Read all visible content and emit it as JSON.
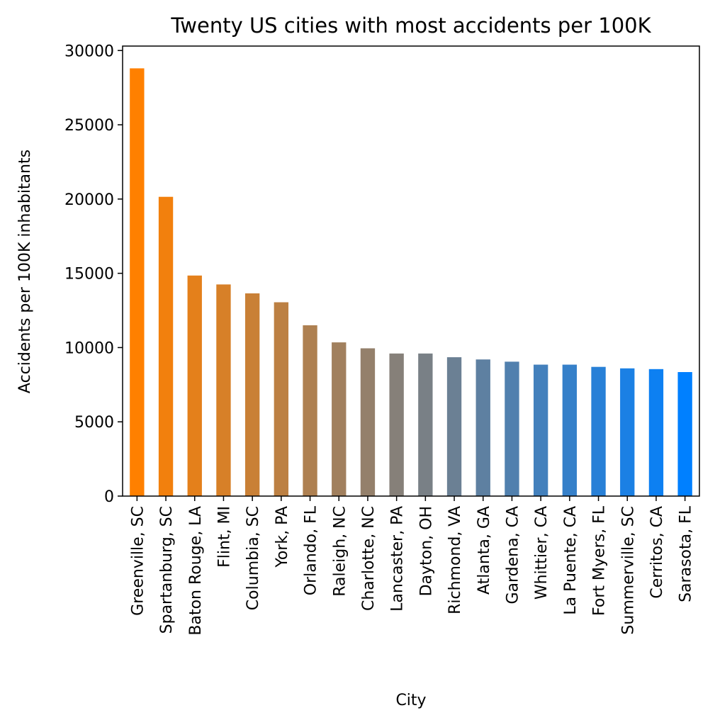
{
  "chart_data": {
    "type": "bar",
    "title": "Twenty US cities with most accidents per 100K",
    "xlabel": "City",
    "ylabel": "Accidents per 100K inhabitants",
    "ylim": [
      0,
      30300
    ],
    "yticks": [
      0,
      5000,
      10000,
      15000,
      20000,
      25000,
      30000
    ],
    "grid": false,
    "categories": [
      "Greenville, SC",
      "Spartanburg, SC",
      "Baton Rouge, LA",
      "Flint, MI",
      "Columbia, SC",
      "York, PA",
      "Orlando, FL",
      "Raleigh, NC",
      "Charlotte, NC",
      "Lancaster, PA",
      "Dayton, OH",
      "Richmond, VA",
      "Atlanta, GA",
      "Gardena, CA",
      "Whittier, CA",
      "La Puente, CA",
      "Fort Myers, FL",
      "Summerville, SC",
      "Cerritos, CA",
      "Sarasota, FL"
    ],
    "values": [
      28800,
      20150,
      14850,
      14250,
      13650,
      13050,
      11500,
      10350,
      9950,
      9600,
      9600,
      9350,
      9200,
      9050,
      8850,
      8850,
      8700,
      8600,
      8550,
      8350
    ],
    "colors": {
      "start": "#ff8000",
      "end": "#0080ff"
    }
  }
}
